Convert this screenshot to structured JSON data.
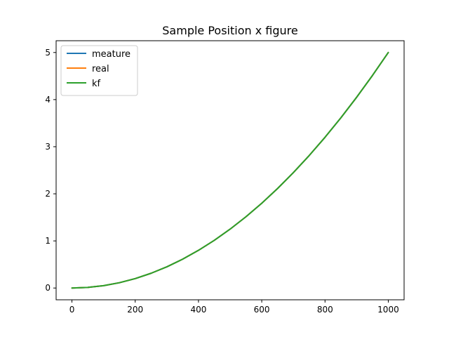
{
  "chart_data": {
    "type": "line",
    "title": "Sample Position x figure",
    "xlabel": "",
    "ylabel": "",
    "xlim": [
      -50,
      1050
    ],
    "ylim": [
      -0.25,
      5.25
    ],
    "xticks": [
      0,
      200,
      400,
      600,
      800,
      1000
    ],
    "yticks": [
      0,
      1,
      2,
      3,
      4,
      5
    ],
    "grid": false,
    "legend_position": "top-left",
    "series": [
      {
        "name": "meature",
        "color": "#1f77b4",
        "x": [
          0,
          50,
          100,
          150,
          200,
          250,
          300,
          350,
          400,
          450,
          500,
          550,
          600,
          650,
          700,
          750,
          800,
          850,
          900,
          950,
          1000
        ],
        "y": [
          0,
          0.0125,
          0.05,
          0.1125,
          0.2,
          0.3125,
          0.45,
          0.6125,
          0.8,
          1.0125,
          1.25,
          1.5125,
          1.8,
          2.1125,
          2.45,
          2.8125,
          3.2,
          3.6125,
          4.05,
          4.5125,
          5.0
        ]
      },
      {
        "name": "real",
        "color": "#ff7f0e",
        "x": [
          0,
          50,
          100,
          150,
          200,
          250,
          300,
          350,
          400,
          450,
          500,
          550,
          600,
          650,
          700,
          750,
          800,
          850,
          900,
          950,
          1000
        ],
        "y": [
          0,
          0.0125,
          0.05,
          0.1125,
          0.2,
          0.3125,
          0.45,
          0.6125,
          0.8,
          1.0125,
          1.25,
          1.5125,
          1.8,
          2.1125,
          2.45,
          2.8125,
          3.2,
          3.6125,
          4.05,
          4.5125,
          5.0
        ]
      },
      {
        "name": "kf",
        "color": "#2ca02c",
        "x": [
          0,
          50,
          100,
          150,
          200,
          250,
          300,
          350,
          400,
          450,
          500,
          550,
          600,
          650,
          700,
          750,
          800,
          850,
          900,
          950,
          1000
        ],
        "y": [
          0,
          0.0125,
          0.05,
          0.1125,
          0.2,
          0.3125,
          0.45,
          0.6125,
          0.8,
          1.0125,
          1.25,
          1.5125,
          1.8,
          2.1125,
          2.45,
          2.8125,
          3.2,
          3.6125,
          4.05,
          4.5125,
          5.0
        ]
      }
    ]
  }
}
